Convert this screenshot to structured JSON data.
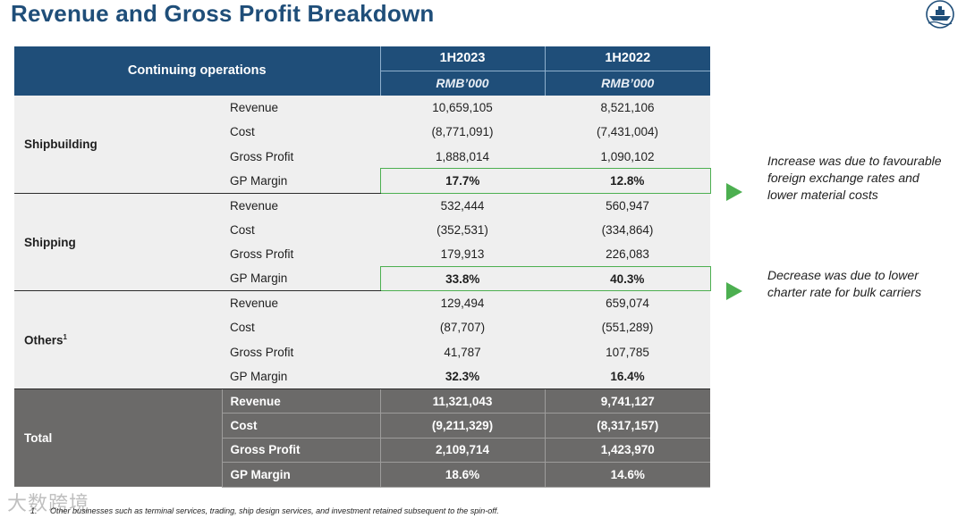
{
  "title": "Revenue and Gross Profit Breakdown",
  "logo_icon": "ship-emblem-icon",
  "table": {
    "header": {
      "segment_label": "Continuing operations",
      "period_1": "1H2023",
      "period_2": "1H2022",
      "unit_1": "RMB’000",
      "unit_2": "RMB’000"
    },
    "groups": [
      {
        "segment": "Shipbuilding",
        "rows": [
          {
            "metric": "Revenue",
            "v1": "10,659,105",
            "v2": "8,521,106"
          },
          {
            "metric": "Cost",
            "v1": "(8,771,091)",
            "v2": "(7,431,004)"
          },
          {
            "metric": "Gross Profit",
            "v1": "1,888,014",
            "v2": "1,090,102"
          },
          {
            "metric": "GP Margin",
            "v1": "17.7%",
            "v2": "12.8%"
          }
        ]
      },
      {
        "segment": "Shipping",
        "rows": [
          {
            "metric": "Revenue",
            "v1": "532,444",
            "v2": "560,947"
          },
          {
            "metric": "Cost",
            "v1": "(352,531)",
            "v2": "(334,864)"
          },
          {
            "metric": "Gross Profit",
            "v1": "179,913",
            "v2": "226,083"
          },
          {
            "metric": "GP Margin",
            "v1": "33.8%",
            "v2": "40.3%"
          }
        ]
      },
      {
        "segment": "Others",
        "segment_sup": "1",
        "rows": [
          {
            "metric": "Revenue",
            "v1": "129,494",
            "v2": "659,074"
          },
          {
            "metric": "Cost",
            "v1": "(87,707)",
            "v2": "(551,289)"
          },
          {
            "metric": "Gross Profit",
            "v1": "41,787",
            "v2": "107,785"
          },
          {
            "metric": "GP Margin",
            "v1": "32.3%",
            "v2": "16.4%"
          }
        ]
      },
      {
        "segment": "Total",
        "rows": [
          {
            "metric": "Revenue",
            "v1": "11,321,043",
            "v2": "9,741,127"
          },
          {
            "metric": "Cost",
            "v1": "(9,211,329)",
            "v2": "(8,317,157)"
          },
          {
            "metric": "Gross Profit",
            "v1": "2,109,714",
            "v2": "1,423,970"
          },
          {
            "metric": "GP Margin",
            "v1": "18.6%",
            "v2": "14.6%"
          }
        ]
      }
    ]
  },
  "callouts": [
    {
      "text": "Increase was due to favourable foreign exchange rates and lower material costs"
    },
    {
      "text": "Decrease was due to lower charter rate for bulk carriers"
    }
  ],
  "colors": {
    "header": "#1f4e79",
    "total": "#6b6a69",
    "accent": "#4caf50",
    "row_bg": "#efefef"
  },
  "footnote": {
    "number": "1.",
    "text": "Other businesses such as terminal services, trading, ship design services, and investment retained subsequent to the spin-off."
  },
  "watermark": "大数跨境"
}
